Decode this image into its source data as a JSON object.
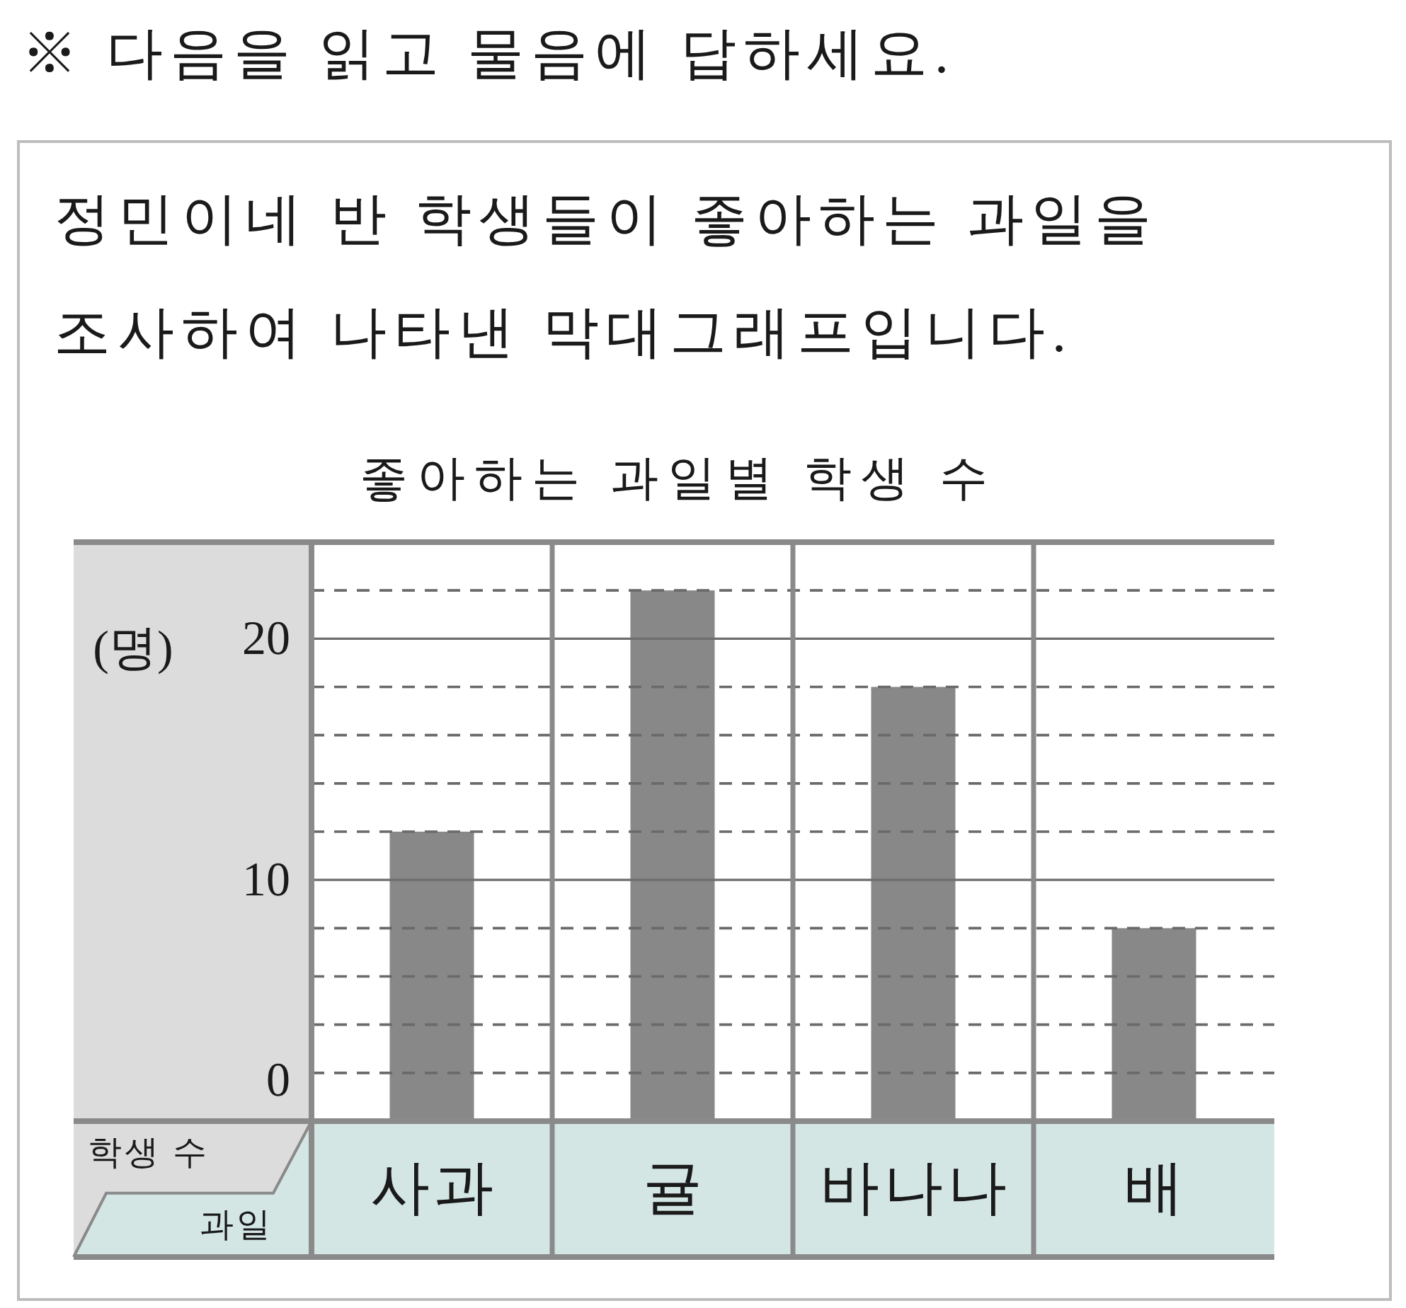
{
  "chart_data": {
    "type": "bar",
    "title": "좋아하는 과일별 학생 수",
    "xlabel": "과일",
    "ylabel": "학생 수",
    "annotations": [
      "※ 다음을 읽고 물음에 답하세요.",
      "정민이네 반 학생들이 좋아하는 과일을 조사하여 나타낸 막대그래프입니다.",
      "(명)"
    ],
    "categories": [
      "사과",
      "귤",
      "바나나",
      "배"
    ],
    "values": [
      12,
      22,
      18,
      8
    ],
    "color": "#888888",
    "ylim": [
      0,
      24
    ],
    "yticks": [
      0,
      {
        "value": 2,
        "label": null
      },
      {
        "value": 4,
        "label": null
      },
      {
        "value": 6,
        "label": null
      },
      {
        "value": 8,
        "label": null
      },
      10,
      {
        "value": 12,
        "label": null
      },
      {
        "value": 14,
        "label": null
      },
      {
        "value": 16,
        "label": null
      },
      {
        "value": 18,
        "label": null
      },
      20,
      {
        "value": 22,
        "label": null
      }
    ],
    "grid": true
  }
}
